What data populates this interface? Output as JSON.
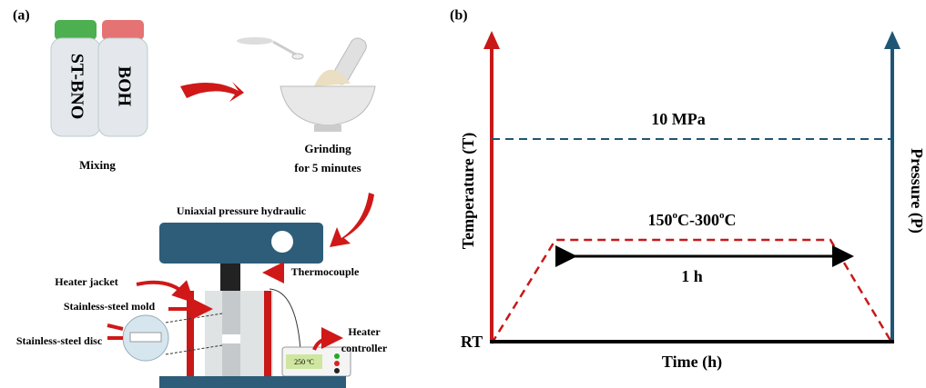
{
  "panel_a": {
    "label": "(a)",
    "bottles": [
      "ST-BNO",
      "BOH"
    ],
    "mixing": "Mixing",
    "grinding": [
      "Grinding",
      "for 5 minutes"
    ],
    "press": {
      "title": "Uniaxial pressure hydraulic",
      "heater_jacket": "Heater jacket",
      "thermocouple": "Thermocouple",
      "mold": "Stainless-steel mold",
      "disc": "Stainless-steel disc",
      "controller": [
        "Heater",
        "controller"
      ],
      "display": "250 ºC"
    }
  },
  "panel_b": {
    "label": "(b)",
    "pressure_level": "10 MPa",
    "temperature_range": [
      "150",
      "o",
      "C-300",
      "o",
      "C"
    ],
    "duration": "1 h",
    "y_left": "Temperature (T)",
    "y_right": "Pressure (P)",
    "origin": "RT",
    "x_axis": "Time (h)"
  }
}
